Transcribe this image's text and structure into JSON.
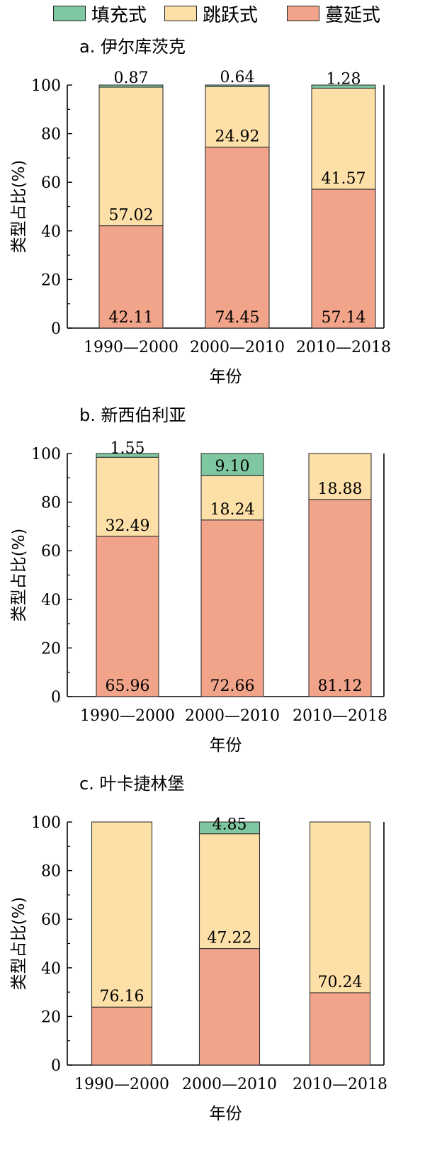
{
  "legend": [
    {
      "label": "填充式",
      "color": "#7fc7a0"
    },
    {
      "label": "跳跃式",
      "color": "#fde0a8"
    },
    {
      "label": "蔓延式",
      "color": "#f2a48a"
    }
  ],
  "chart_data": [
    {
      "type": "bar",
      "title": "a. 伊尔库茨克",
      "xlabel": "年份",
      "ylabel": "类型占比(%)",
      "ylim": [
        0,
        100
      ],
      "yticks": [
        "0",
        "20",
        "40",
        "60",
        "80",
        "100"
      ],
      "categories": [
        "1990—2000",
        "2000—2010",
        "2010—2018"
      ],
      "series": [
        {
          "name": "蔓延式",
          "values": [
            42.11,
            74.45,
            57.14
          ],
          "labels": [
            "42.11",
            "74.45",
            "57.14"
          ]
        },
        {
          "name": "跳跃式",
          "values": [
            57.02,
            24.92,
            41.57
          ],
          "labels": [
            "57.02",
            "24.92",
            "41.57"
          ]
        },
        {
          "name": "填充式",
          "values": [
            0.87,
            0.64,
            1.28
          ],
          "labels": [
            "0.87",
            "0.64",
            "1.28"
          ]
        }
      ]
    },
    {
      "type": "bar",
      "title": "b. 新西伯利亚",
      "xlabel": "年份",
      "ylabel": "类型占比(%)",
      "ylim": [
        0,
        100
      ],
      "yticks": [
        "0",
        "20",
        "40",
        "60",
        "80",
        "100"
      ],
      "categories": [
        "1990—2000",
        "2000—2010",
        "2010—2018"
      ],
      "series": [
        {
          "name": "蔓延式",
          "values": [
            65.96,
            72.66,
            81.12
          ],
          "labels": [
            "65.96",
            "72.66",
            "81.12"
          ]
        },
        {
          "name": "跳跃式",
          "values": [
            32.49,
            18.24,
            18.88
          ],
          "labels": [
            "32.49",
            "18.24",
            "18.88"
          ]
        },
        {
          "name": "填充式",
          "values": [
            1.55,
            9.1,
            0
          ],
          "labels": [
            "1.55",
            "9.10",
            ""
          ]
        }
      ]
    },
    {
      "type": "bar",
      "title": "c. 叶卡捷林堡",
      "xlabel": "年份",
      "ylabel": "类型占比(%)",
      "ylim": [
        0,
        100
      ],
      "yticks": [
        "0",
        "20",
        "40",
        "60",
        "80",
        "100"
      ],
      "categories": [
        "1990—2000",
        "2000—2010",
        "2010—2018"
      ],
      "series": [
        {
          "name": "蔓延式",
          "values": [
            23.84,
            47.93,
            29.76
          ],
          "labels": [
            "",
            "",
            ""
          ]
        },
        {
          "name": "跳跃式",
          "values": [
            76.16,
            47.22,
            70.24
          ],
          "labels": [
            "76.16",
            "47.22",
            "70.24"
          ]
        },
        {
          "name": "填充式",
          "values": [
            0,
            4.85,
            0
          ],
          "labels": [
            "",
            "4.85",
            ""
          ]
        }
      ]
    }
  ]
}
